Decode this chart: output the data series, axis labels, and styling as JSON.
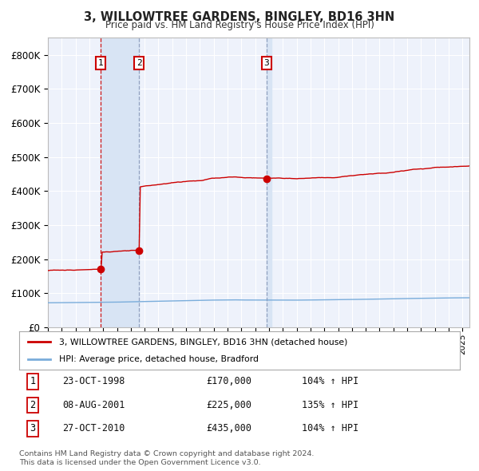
{
  "title": "3, WILLOWTREE GARDENS, BINGLEY, BD16 3HN",
  "subtitle": "Price paid vs. HM Land Registry's House Price Index (HPI)",
  "legend_label_red": "3, WILLOWTREE GARDENS, BINGLEY, BD16 3HN (detached house)",
  "legend_label_blue": "HPI: Average price, detached house, Bradford",
  "transactions": [
    {
      "num": 1,
      "date": "23-OCT-1998",
      "year": 1998.81,
      "price": 170000,
      "label": "104% ↑ HPI"
    },
    {
      "num": 2,
      "date": "08-AUG-2001",
      "year": 2001.6,
      "price": 225000,
      "label": "135% ↑ HPI"
    },
    {
      "num": 3,
      "date": "27-OCT-2010",
      "year": 2010.81,
      "price": 435000,
      "label": "104% ↑ HPI"
    }
  ],
  "footer1": "Contains HM Land Registry data © Crown copyright and database right 2024.",
  "footer2": "This data is licensed under the Open Government Licence v3.0.",
  "background_color": "#ffffff",
  "plot_bg_color": "#eef2fb",
  "grid_color": "#ffffff",
  "red_color": "#cc0000",
  "blue_color": "#7aaddb",
  "vline1_color": "#cc0000",
  "vline2_color": "#8899bb",
  "shade_color": "#d8e4f4",
  "ylim": [
    0,
    850000
  ],
  "yticks": [
    0,
    100000,
    200000,
    300000,
    400000,
    500000,
    600000,
    700000,
    800000
  ],
  "ytick_labels": [
    "£0",
    "£100K",
    "£200K",
    "£300K",
    "£400K",
    "£500K",
    "£600K",
    "£700K",
    "£800K"
  ],
  "xlim_start": 1995.0,
  "xlim_end": 2025.5
}
